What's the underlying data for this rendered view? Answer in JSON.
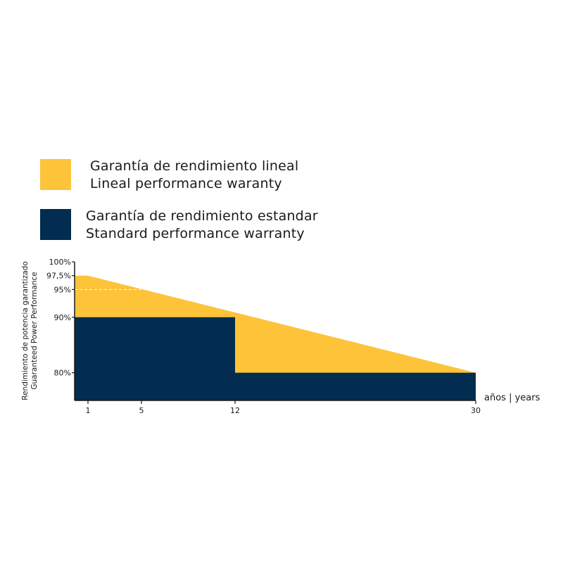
{
  "legend": [
    {
      "line1": "Garantía de rendimiento lineal",
      "line2": "Lineal performance waranty",
      "color": "#fdc339"
    },
    {
      "line1": "Garantía de rendimiento estandar",
      "line2": "Standard performance warranty",
      "color": "#022d50"
    }
  ],
  "chart_data": {
    "type": "area",
    "title": "",
    "xlabel": "años | years",
    "ylabel_line1": "Rendimiento de potencia garantizado",
    "ylabel_line2": "Guaranteed Power Performance",
    "xlim": [
      0,
      30
    ],
    "ylim": [
      75,
      100
    ],
    "x_ticks": [
      1,
      5,
      12,
      30
    ],
    "x_tick_labels": [
      "1",
      "5",
      "12",
      "30"
    ],
    "y_ticks": [
      100,
      97.5,
      95,
      90,
      80
    ],
    "y_tick_labels": [
      "100%",
      "97,5%",
      "95%",
      "90%",
      "80%"
    ],
    "grid": false,
    "legend_position": "top-left",
    "series": [
      {
        "name": "Garantía de rendimiento lineal",
        "kind": "area",
        "color": "#fdc339",
        "points": [
          [
            0,
            97.5
          ],
          [
            1,
            97.5
          ],
          [
            30,
            80
          ]
        ]
      },
      {
        "name": "Garantía de rendimiento estandar",
        "kind": "step",
        "color": "#022d50",
        "points": [
          [
            0,
            90
          ],
          [
            12,
            90
          ],
          [
            12,
            80
          ],
          [
            30,
            80
          ]
        ]
      }
    ],
    "annotations": [
      {
        "type": "dashed-line",
        "y": 95,
        "x_from": 0,
        "x_to": 5,
        "color": "#ffffff"
      }
    ]
  }
}
